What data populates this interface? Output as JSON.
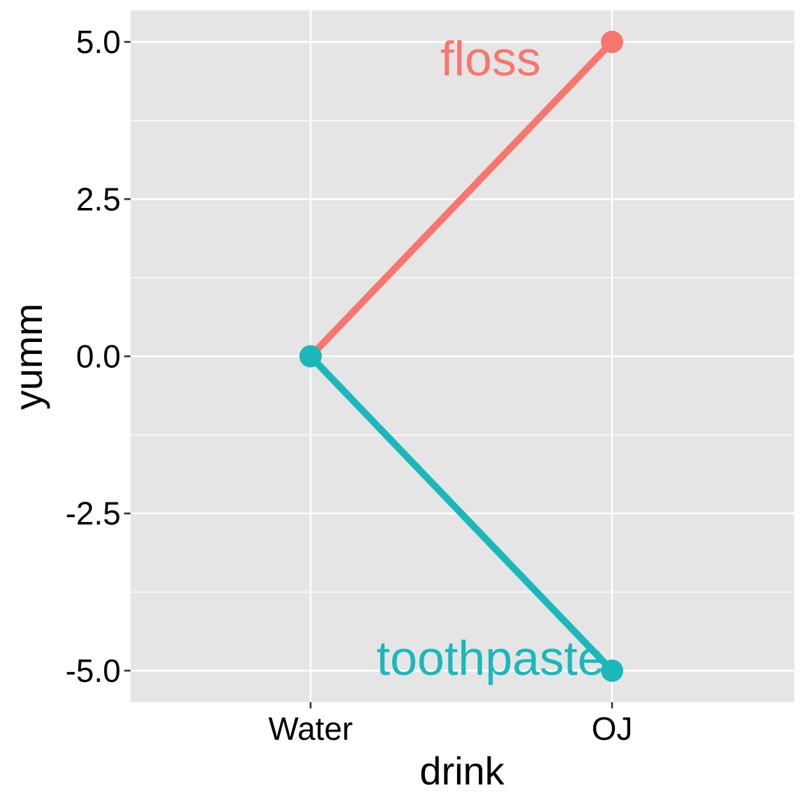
{
  "chart_data": {
    "type": "line",
    "categories": [
      "Water",
      "OJ"
    ],
    "series": [
      {
        "name": "floss",
        "values": [
          0,
          5
        ],
        "color": "#F8766D"
      },
      {
        "name": "toothpaste",
        "values": [
          0,
          -5
        ],
        "color": "#1BB8BB"
      }
    ],
    "xlabel": "drink",
    "ylabel": "yumm",
    "ylim": [
      -5.5,
      5.5
    ],
    "yticks": [
      {
        "value": -5.0,
        "label": "-5.0"
      },
      {
        "value": -2.5,
        "label": "-2.5"
      },
      {
        "value": 0.0,
        "label": "0.0"
      },
      {
        "value": 2.5,
        "label": "2.5"
      },
      {
        "value": 5.0,
        "label": "5.0"
      }
    ],
    "grid": true,
    "legend": "none",
    "panel_color": "#E5E5E5",
    "grid_color": "#FFFFFF"
  }
}
